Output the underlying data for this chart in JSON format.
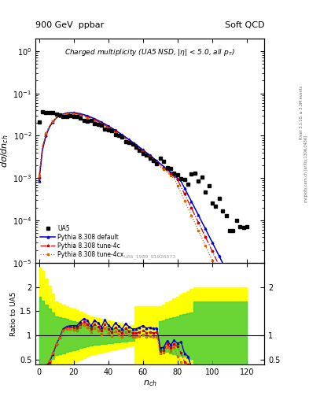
{
  "title_left": "900 GeV  ppbar",
  "title_right": "Soft QCD",
  "plot_title": "Charged multiplicity (UA5 NSD, |\\eta| < 5.0, all p_{T})",
  "ylabel_main": "d\\sigma/dn_{ch}",
  "ylabel_ratio": "Ratio to UA5",
  "xlabel": "n_{ch}",
  "right_label_top": "Rivet 3.1.10, ≥ 3.3M events",
  "right_label_bottom": "mcplots.cern.ch [arXiv:1306.3436]",
  "ref_label": "UA5_1989_S1926373",
  "ylim_main": [
    1e-05,
    2.0
  ],
  "ylim_ratio": [
    0.4,
    2.5
  ],
  "xlim": [
    -2,
    130
  ],
  "legend_entries": [
    "UA5",
    "Pythia 8.308 default",
    "Pythia 8.308 tune-4c",
    "Pythia 8.308 tune-4cx"
  ],
  "colors": {
    "ua5": "#000000",
    "default": "#0000cc",
    "tune4c": "#cc0000",
    "tune4cx": "#cc6600"
  },
  "band_yellow": "#ffff00",
  "band_green": "#44cc44",
  "background": "#ffffff"
}
